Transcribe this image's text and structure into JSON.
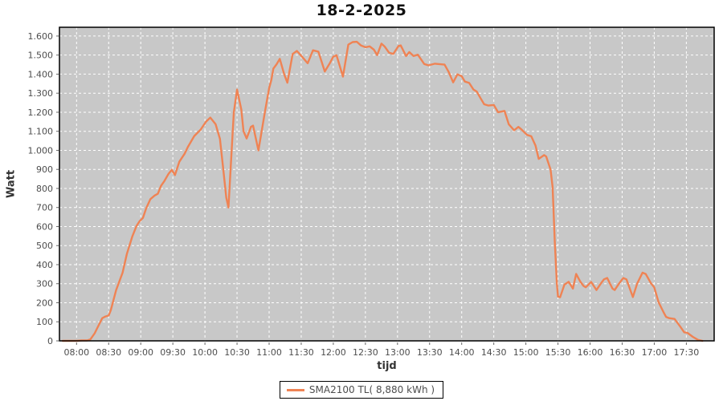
{
  "chart_title": "18-2-2025",
  "axes": {
    "y_title": "Watt",
    "x_title": "tijd"
  },
  "legend": {
    "label": "SMA2100 TL( 8,880 kWh )"
  },
  "chart_data": {
    "type": "line",
    "title": "18-2-2025",
    "xlabel": "tijd",
    "ylabel": "Watt",
    "legend_position": "bottom-center",
    "grid": true,
    "colors": {
      "plot_bg": "#C8C8C8",
      "grid": "#FFFFFF",
      "line": "#EF8354",
      "border": "#000000",
      "tick": "#666666"
    },
    "xlim_minutes": [
      -16,
      596
    ],
    "ylim": [
      0,
      1646
    ],
    "y_ticks": [
      {
        "value": 0,
        "label": "0"
      },
      {
        "value": 100,
        "label": "100"
      },
      {
        "value": 200,
        "label": "200"
      },
      {
        "value": 300,
        "label": "300"
      },
      {
        "value": 400,
        "label": "400"
      },
      {
        "value": 500,
        "label": "500"
      },
      {
        "value": 600,
        "label": "600"
      },
      {
        "value": 700,
        "label": "700"
      },
      {
        "value": 800,
        "label": "800"
      },
      {
        "value": 900,
        "label": "900"
      },
      {
        "value": 1000,
        "label": "1.000"
      },
      {
        "value": 1100,
        "label": "1.100"
      },
      {
        "value": 1200,
        "label": "1.200"
      },
      {
        "value": 1300,
        "label": "1.300"
      },
      {
        "value": 1400,
        "label": "1.400"
      },
      {
        "value": 1500,
        "label": "1.500"
      },
      {
        "value": 1600,
        "label": "1.600"
      }
    ],
    "x_ticks": [
      {
        "minutes": 0,
        "label": "08:00"
      },
      {
        "minutes": 30,
        "label": "08:30"
      },
      {
        "minutes": 60,
        "label": "09:00"
      },
      {
        "minutes": 90,
        "label": "09:30"
      },
      {
        "minutes": 120,
        "label": "10:00"
      },
      {
        "minutes": 150,
        "label": "10:30"
      },
      {
        "minutes": 180,
        "label": "11:00"
      },
      {
        "minutes": 210,
        "label": "11:30"
      },
      {
        "minutes": 240,
        "label": "12:00"
      },
      {
        "minutes": 270,
        "label": "12:30"
      },
      {
        "minutes": 300,
        "label": "13:00"
      },
      {
        "minutes": 330,
        "label": "13:30"
      },
      {
        "minutes": 360,
        "label": "14:00"
      },
      {
        "minutes": 390,
        "label": "14:30"
      },
      {
        "minutes": 420,
        "label": "15:00"
      },
      {
        "minutes": 450,
        "label": "15:30"
      },
      {
        "minutes": 480,
        "label": "16:00"
      },
      {
        "minutes": 510,
        "label": "16:30"
      },
      {
        "minutes": 540,
        "label": "17:00"
      },
      {
        "minutes": 570,
        "label": "17:30"
      }
    ],
    "series": [
      {
        "name": "SMA2100 TL( 8,880 kWh )",
        "color": "#EF8354",
        "points_format": [
          "minutes_after_0800",
          "watt"
        ],
        "points": [
          [
            -13,
            0
          ],
          [
            0,
            0
          ],
          [
            5,
            2
          ],
          [
            10,
            2
          ],
          [
            13,
            8
          ],
          [
            17,
            40
          ],
          [
            19,
            63
          ],
          [
            24,
            119
          ],
          [
            27,
            128
          ],
          [
            30,
            133
          ],
          [
            32,
            161
          ],
          [
            37,
            267
          ],
          [
            43,
            358
          ],
          [
            47,
            456
          ],
          [
            52,
            547
          ],
          [
            56,
            603
          ],
          [
            59,
            629
          ],
          [
            62,
            645
          ],
          [
            65,
            695
          ],
          [
            69,
            744
          ],
          [
            73,
            763
          ],
          [
            76,
            772
          ],
          [
            79,
            814
          ],
          [
            82,
            838
          ],
          [
            86,
            877
          ],
          [
            89,
            898
          ],
          [
            92,
            870
          ],
          [
            96,
            940
          ],
          [
            101,
            982
          ],
          [
            104,
            1017
          ],
          [
            110,
            1075
          ],
          [
            116,
            1109
          ],
          [
            121,
            1150
          ],
          [
            125,
            1172
          ],
          [
            130,
            1137
          ],
          [
            134,
            1060
          ],
          [
            137,
            905
          ],
          [
            140,
            751
          ],
          [
            142,
            700
          ],
          [
            145,
            1003
          ],
          [
            147,
            1200
          ],
          [
            150,
            1319
          ],
          [
            154,
            1214
          ],
          [
            156,
            1101
          ],
          [
            159,
            1062
          ],
          [
            163,
            1123
          ],
          [
            165,
            1130
          ],
          [
            170,
            1000
          ],
          [
            176,
            1200
          ],
          [
            180,
            1326
          ],
          [
            182,
            1368
          ],
          [
            184,
            1429
          ],
          [
            187,
            1452
          ],
          [
            190,
            1480
          ],
          [
            194,
            1400
          ],
          [
            197,
            1355
          ],
          [
            202,
            1506
          ],
          [
            206,
            1522
          ],
          [
            211,
            1490
          ],
          [
            216,
            1457
          ],
          [
            221,
            1525
          ],
          [
            226,
            1518
          ],
          [
            232,
            1414
          ],
          [
            237,
            1460
          ],
          [
            240,
            1492
          ],
          [
            243,
            1499
          ],
          [
            249,
            1387
          ],
          [
            254,
            1555
          ],
          [
            258,
            1568
          ],
          [
            262,
            1570
          ],
          [
            266,
            1550
          ],
          [
            270,
            1541
          ],
          [
            274,
            1546
          ],
          [
            278,
            1528
          ],
          [
            281,
            1500
          ],
          [
            285,
            1560
          ],
          [
            288,
            1545
          ],
          [
            292,
            1513
          ],
          [
            296,
            1506
          ],
          [
            301,
            1548
          ],
          [
            303,
            1551
          ],
          [
            308,
            1495
          ],
          [
            311,
            1516
          ],
          [
            315,
            1495
          ],
          [
            319,
            1502
          ],
          [
            325,
            1453
          ],
          [
            329,
            1446
          ],
          [
            335,
            1455
          ],
          [
            344,
            1450
          ],
          [
            348,
            1410
          ],
          [
            352,
            1357
          ],
          [
            356,
            1399
          ],
          [
            360,
            1389
          ],
          [
            363,
            1361
          ],
          [
            367,
            1354
          ],
          [
            371,
            1319
          ],
          [
            374,
            1309
          ],
          [
            378,
            1270
          ],
          [
            381,
            1242
          ],
          [
            385,
            1235
          ],
          [
            390,
            1238
          ],
          [
            394,
            1200
          ],
          [
            400,
            1207
          ],
          [
            404,
            1137
          ],
          [
            409,
            1105
          ],
          [
            413,
            1123
          ],
          [
            416,
            1109
          ],
          [
            421,
            1081
          ],
          [
            425,
            1074
          ],
          [
            429,
            1025
          ],
          [
            432,
            955
          ],
          [
            437,
            975
          ],
          [
            439,
            968
          ],
          [
            443,
            900
          ],
          [
            445,
            807
          ],
          [
            447,
            520
          ],
          [
            449,
            300
          ],
          [
            450,
            232
          ],
          [
            452,
            229
          ],
          [
            456,
            295
          ],
          [
            460,
            310
          ],
          [
            464,
            274
          ],
          [
            467,
            351
          ],
          [
            471,
            310
          ],
          [
            474,
            288
          ],
          [
            476,
            281
          ],
          [
            481,
            309
          ],
          [
            486,
            267
          ],
          [
            490,
            300
          ],
          [
            493,
            323
          ],
          [
            496,
            330
          ],
          [
            501,
            274
          ],
          [
            503,
            267
          ],
          [
            507,
            300
          ],
          [
            511,
            330
          ],
          [
            514,
            323
          ],
          [
            520,
            230
          ],
          [
            524,
            300
          ],
          [
            529,
            358
          ],
          [
            532,
            351
          ],
          [
            537,
            302
          ],
          [
            540,
            281
          ],
          [
            544,
            203
          ],
          [
            549,
            147
          ],
          [
            551,
            126
          ],
          [
            554,
            119
          ],
          [
            559,
            115
          ],
          [
            564,
            77
          ],
          [
            568,
            45
          ],
          [
            571,
            42
          ],
          [
            576,
            21
          ],
          [
            581,
            5
          ],
          [
            585,
            0
          ]
        ]
      }
    ]
  }
}
